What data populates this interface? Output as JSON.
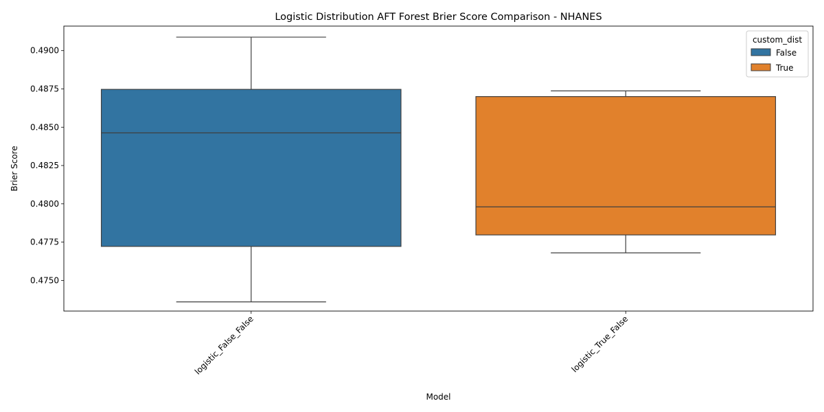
{
  "chart_data": {
    "type": "box",
    "title": "Logistic Distribution AFT Forest Brier Score Comparison - NHANES",
    "xlabel": "Model",
    "ylabel": "Brier Score",
    "ylim": [
      0.473,
      0.4916
    ],
    "yticks": [
      0.475,
      0.4775,
      0.48,
      0.4825,
      0.485,
      0.4875,
      0.49
    ],
    "ytick_labels": [
      "0.4750",
      "0.4775",
      "0.4800",
      "0.4825",
      "0.4850",
      "0.4875",
      "0.4900"
    ],
    "categories": [
      "logistic_False_False",
      "logistic_True_False"
    ],
    "legend": {
      "title": "custom_dist",
      "position": "top-right",
      "entries": [
        {
          "label": "False",
          "color": "#3274a1"
        },
        {
          "label": "True",
          "color": "#e1812c"
        }
      ]
    },
    "boxes": [
      {
        "category": "logistic_False_False",
        "hue": "False",
        "color": "#3274a1",
        "whisker_low": 0.4736,
        "q1": 0.47722,
        "median": 0.48463,
        "q3": 0.48747,
        "whisker_high": 0.49088
      },
      {
        "category": "logistic_True_False",
        "hue": "True",
        "color": "#e1812c",
        "whisker_low": 0.4768,
        "q1": 0.47797,
        "median": 0.4798,
        "q3": 0.487,
        "whisker_high": 0.48737
      }
    ],
    "grid": false
  }
}
